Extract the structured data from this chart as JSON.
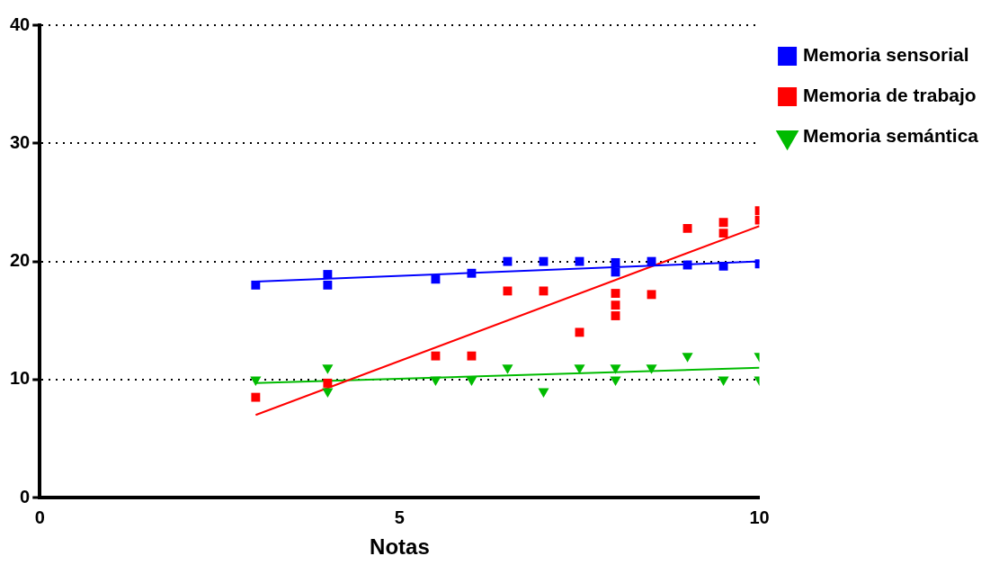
{
  "chart_data": {
    "type": "scatter",
    "xlabel": "Notas",
    "xlim": [
      0,
      10
    ],
    "xticks": [
      0,
      5,
      10
    ],
    "ylim": [
      0,
      40
    ],
    "yticks": [
      0,
      10,
      20,
      30,
      40
    ],
    "grid": "y",
    "legend": "top right",
    "series": [
      {
        "name": "Memoria sensorial",
        "color": "#0000ff",
        "marker": "square",
        "x": [
          3,
          4,
          4,
          5.5,
          6,
          6.5,
          7,
          7.5,
          8,
          8,
          8.5,
          9,
          9.5,
          10
        ],
        "values": [
          18,
          18.9,
          18,
          18.5,
          19,
          20,
          20,
          20,
          19.9,
          19.1,
          20,
          19.7,
          19.6,
          19.8
        ]
      },
      {
        "name": "Memoria de trabajo",
        "color": "#ff0000",
        "marker": "square",
        "x": [
          3,
          4,
          5.5,
          6,
          6.5,
          7,
          7.5,
          8,
          8,
          8,
          8.5,
          9,
          9.5,
          9.5,
          10,
          10
        ],
        "values": [
          8.5,
          9.7,
          12,
          12,
          17.5,
          17.5,
          14,
          17.3,
          16.3,
          15.4,
          17.2,
          22.8,
          23.3,
          22.4,
          24.3,
          23.5
        ]
      },
      {
        "name": "Memoria semántica",
        "color": "#00bb00",
        "marker": "triangle",
        "x": [
          3,
          4,
          4,
          5.5,
          6,
          6.5,
          7,
          7.5,
          8,
          8,
          8.5,
          9,
          9.5,
          10,
          10
        ],
        "values": [
          10,
          11,
          9,
          10,
          10,
          11,
          9,
          11,
          11,
          10,
          11,
          12,
          10,
          12,
          10
        ]
      },
      {
        "type": "line",
        "color": "#0000ff",
        "line_style": "solid",
        "marker": "none",
        "x": [
          3,
          10
        ],
        "values": [
          18.3,
          20
        ]
      },
      {
        "type": "line",
        "color": "#ff0000",
        "line_style": "solid",
        "marker": "none",
        "x": [
          3,
          10
        ],
        "values": [
          7,
          23
        ]
      },
      {
        "type": "line",
        "color": "#00bb00",
        "line_style": "solid",
        "marker": "none",
        "x": [
          3,
          10
        ],
        "values": [
          9.7,
          11
        ]
      }
    ]
  }
}
